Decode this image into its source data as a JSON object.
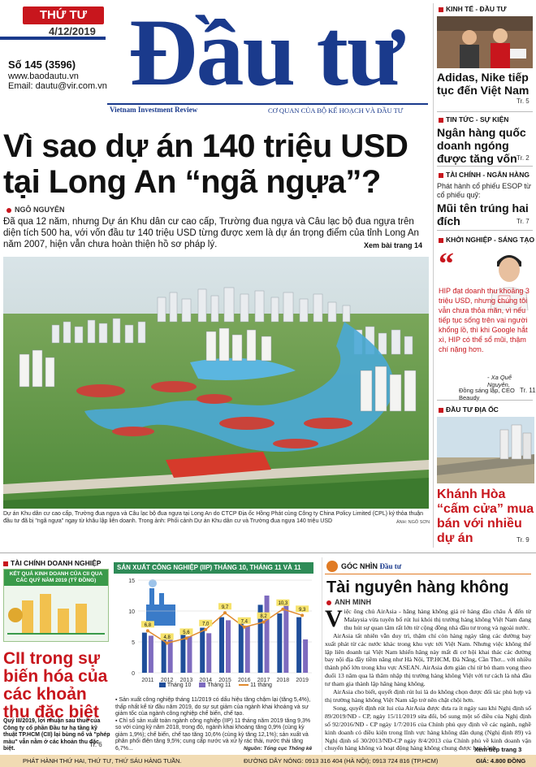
{
  "header": {
    "day": "THỨ TƯ",
    "date": "4/12/2019",
    "issue": "Số 145 (3596)",
    "website": "www.baodautu.vn",
    "email": "Email: dautu@vir.com.vn",
    "masthead": "Đầu tư",
    "english_name": "Vietnam Investment Review",
    "agency": "CƠ QUAN CỦA BỘ KẾ HOẠCH VÀ ĐẦU TƯ"
  },
  "main_story": {
    "headline_line1": "Vì sao dự án 140 triệu USD",
    "headline_line2": "tại Long An “ngã ngựa”?",
    "author": "NGÔ NGUYÊN",
    "lede": "Đã qua 12 năm, nhưng Dự án Khu dân cư cao cấp, Trường đua ngựa và Câu lạc bộ đua ngựa trên diện tích 500 ha, với vốn đầu tư 140 triệu USD từng được xem là dự án trọng điểm của tỉnh Long An năm 2007, hiện vẫn chưa hoàn thiện hồ sơ pháp lý.",
    "see_page": "Xem bài trang 14",
    "caption": "Dự án Khu dân cư cao cấp, Trường đua ngựa và Câu lạc bộ đua ngựa tại Long An do CTCP Địa ốc Hồng Phát cùng Công ty China Policy Limited (CPL) ký thỏa thuận đầu tư đã bị \"ngã ngựa\" ngay từ khâu lập liên doanh. Trong ảnh: Phối cảnh Dự án Khu dân cư và Trường đua ngựa 140 triệu USD",
    "photo_credit": "ẢNH: NGÔ SƠN"
  },
  "sidebar": {
    "s1_label": "KINH TẾ - ĐẦU TƯ",
    "s1_head": "Adidas, Nike tiếp tục đến Việt Nam",
    "s1_page": "Tr. 5",
    "s2_label": "TIN TỨC - SỰ KIỆN",
    "s2_head": "Ngân hàng quốc doanh ngóng được tăng vốn",
    "s2_page": "Tr. 2",
    "s3_label": "TÀI CHÍNH - NGÂN HÀNG",
    "s3_sub": "Phát hành cổ phiếu ESOP từ cổ phiếu quỹ:",
    "s3_head": "Mũi tên trúng hai đích",
    "s3_page": "Tr. 7",
    "s4_label": "KHỞI NGHIỆP - SÁNG TẠO",
    "s4_quote": "HIP đạt doanh thu khoảng 3 triệu USD, nhưng chúng tôi vẫn chưa thỏa mãn, vì nếu tiếp tục sống trên vai người khổng lồ, thì khi Google hắt xì, HIP có thể sổ mũi, thậm chí nặng hơn.",
    "s4_name": "- Xa Quế Nguyên,",
    "s4_role": "Đồng sáng lập, CEO Beaudy",
    "s4_page": "Tr. 11",
    "s5_label": "ĐẦU TƯ ĐỊA ỐC",
    "s5_head": "Khánh Hòa “cấm cửa” mua bán với nhiều dự án",
    "s5_page": "Tr. 9"
  },
  "bottom_left": {
    "label": "TÀI CHÍNH DOANH NGHIỆP",
    "box_title": "KẾT QUẢ KINH DOANH CỦA CII QUA CÁC QUÝ NĂM 2019 (TỶ ĐỒNG)",
    "headline": "CII trong sự biến hóa của các khoản thu đặc biệt",
    "body": "Quý III/2019, lợi nhuận sau thuế của Công ty cổ phần Đầu tư hạ tầng kỹ thuật TP.HCM (CII) lại bùng nổ và \"phép màu\" vẫn nằm ở các khoản thu đặc biệt.",
    "page": "Tr. 6"
  },
  "chart_block": {
    "title": "SẢN XUẤT CÔNG NGHIỆP (IIP) THÁNG 10, THÁNG 11 VÀ 11 THÁNG (%)",
    "legend_t10": "Tháng 10",
    "legend_t11": "Tháng 11",
    "legend_11m": "11 tháng",
    "bullet1": "Sản xuất công nghiệp tháng 11/2019 có dấu hiệu tăng chậm lại (tăng 5,4%), thấp nhất kể từ đầu năm 2019, do sự sụt giảm của ngành khai khoáng và sự giảm tốc của ngành công nghiệp chế biến, chế tạo.",
    "bullet2": "Chỉ số sản xuất toàn ngành công nghiệp (IIP) 11 tháng năm 2019 tăng 9,3% so với cùng kỳ năm 2018, trong đó, ngành khai khoáng tăng 0,9% (cùng kỳ giảm 1,9%); chế biến, chế tạo tăng 10,6% (cùng kỳ tăng 12,1%); sản xuất và phân phối điện tăng 9,5%; cung cấp nước và xử lý rác thải, nước thải tăng 6,7%...",
    "source": "Nguồn: Tổng cục Thống kê"
  },
  "chart_data": {
    "type": "bar",
    "title": "SẢN XUẤT CÔNG NGHIỆP (IIP) THÁNG 10, THÁNG 11 VÀ 11 THÁNG (%)",
    "categories": [
      "2011",
      "2012",
      "2013",
      "2014",
      "2015",
      "2016",
      "2017",
      "2018",
      "2019"
    ],
    "series": [
      {
        "name": "Tháng 10",
        "values": [
          6.5,
          5.5,
          6.3,
          7.3,
          9.0,
          8.2,
          11.0,
          9.6,
          9.0
        ]
      },
      {
        "name": "Tháng 11",
        "values": [
          6.0,
          5.6,
          5.9,
          6.4,
          8.5,
          7.6,
          12.5,
          11.0,
          5.4
        ]
      },
      {
        "name": "11 tháng",
        "type": "line",
        "values": [
          6.8,
          4.8,
          5.6,
          7.0,
          9.7,
          7.4,
          8.2,
          10.3,
          9.3
        ]
      }
    ],
    "point_labels": [
      "6,8",
      "4,8",
      "5,6",
      "7,0",
      "9,7",
      "7,4",
      "8,2",
      "10,3",
      "9,3"
    ],
    "yticks": [
      0,
      5,
      10,
      15
    ],
    "ylim": [
      0,
      15
    ],
    "colors": {
      "Tháng 10": "#1f4e9a",
      "Tháng 11": "#7e6bbf",
      "11 tháng": "#e08a2e"
    }
  },
  "opinion": {
    "label": "GÓC NHÌN",
    "label_brand": "Đầu tư",
    "headline": "Tài nguyên hàng không",
    "author": "ANH MINH",
    "dropcap": "V",
    "p1": "iệc ông chủ AirAsia - hãng hàng không giá rẻ hàng đầu châu Á đến từ Malaysia vừa tuyên bố rút lui khỏi thị trường hàng không Việt Nam đang thu hút sự quan tâm rất lớn từ cộng đồng nhà đầu tư trong và ngoài nước.",
    "p2": "AirAsia tất nhiên vẫn duy trì, thậm chí còn hàng ngày tăng các đường bay xuất phát từ các nước khác trong khu vực tới Việt Nam. Nhưng việc không thể lập liên doanh tại Việt Nam khiến hãng này mất đi cơ hội khai thác các đường bay nội địa đầy tiềm năng như Hà Nội, TP.HCM, Đà Nẵng, Cần Thơ... với nhiều thành phố lớn trong khu vực ASEAN. AirAsia đơn giản chỉ từ bỏ tham vọng theo đuổi 13 năm qua là thâm nhập thị trường hàng không Việt với tư cách là nhà đầu tư tham gia thành lập hãng hàng không.",
    "p3": "AirAsia cho biết, quyết định rút lui là do không chọn được đối tác phù hợp và thị trường hàng không Việt Nam sắp trở nên chật chội hơn.",
    "p4": "Song, quyết định rút lui của AirAsia được đưa ra ít ngày sau khi Nghị định số 89/2019/NĐ - CP, ngày 15/11/2019 sửa đổi, bổ sung một số điều của Nghị định số 92/2016/NĐ - CP ngày 1/7/2016 của Chính phủ quy định về các ngành, nghề kinh doanh có điều kiện trong lĩnh vực hàng không dân dụng (Nghị định 89) và Nghị định số 30/2013/NĐ-CP ngày 8/4/2013 của Chính phủ về kinh doanh vận chuyển hàng không và hoạt động hàng không chung được ban hành.",
    "see_page": "Xem tiếp trang 3"
  },
  "footer": {
    "left": "PHÁT HÀNH THỨ HAI, THỨ TƯ, THỨ SÁU HÀNG TUẦN.",
    "hotline": "ĐƯỜNG DÂY NÓNG: 0913 316 404 (HÀ NỘI); 0913 724 816 (TP.HCM)",
    "price": "GIÁ: 4.800 ĐỒNG"
  }
}
